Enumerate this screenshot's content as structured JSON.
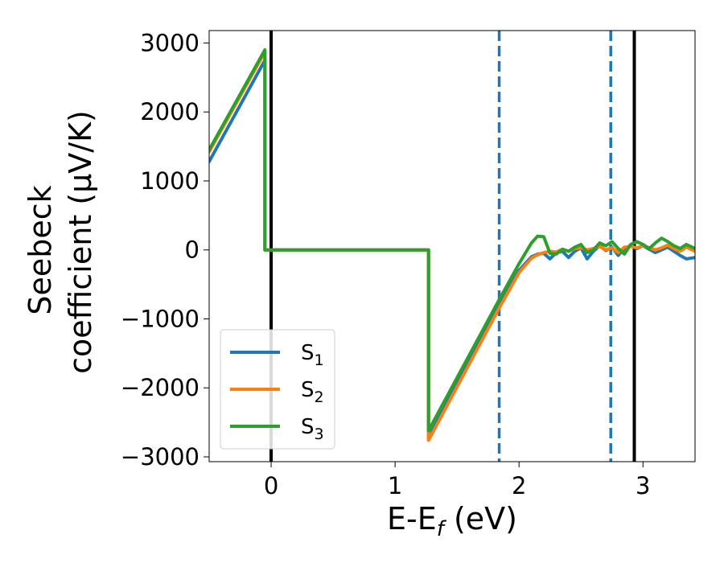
{
  "chart_data": {
    "type": "line",
    "xlabel_main": "E-E",
    "xlabel_sub": "f",
    "xlabel_unit": " (eV)",
    "ylabel_line1": "Seebeck",
    "ylabel_line2": "coefficient  (μV/K)",
    "xlim": [
      -0.5,
      3.42
    ],
    "ylim": [
      -3070,
      3180
    ],
    "xticks": [
      0,
      1,
      2,
      3
    ],
    "xtick_labels": [
      "0",
      "1",
      "2",
      "3"
    ],
    "yticks": [
      3000,
      2000,
      1000,
      0,
      -1000,
      -2000,
      -3000
    ],
    "ytick_labels": [
      "3000",
      "2000",
      "1000",
      "0",
      "−1000",
      "−2000",
      "−3000"
    ],
    "grid": false,
    "legend_position": "lower-left",
    "vlines": [
      {
        "x": 0.0,
        "style": "solid",
        "color": "#000000"
      },
      {
        "x": 1.84,
        "style": "dashed",
        "color": "#1f77b4"
      },
      {
        "x": 2.74,
        "style": "dashed",
        "color": "#1f77b4"
      },
      {
        "x": 2.93,
        "style": "solid",
        "color": "#000000"
      }
    ],
    "series": [
      {
        "name": "S",
        "subscript": "1",
        "color": "#1f77b4",
        "x": [
          -0.5,
          -0.05,
          -0.05,
          1.27,
          1.27,
          1.84,
          2.0,
          2.1,
          2.15,
          2.2,
          2.25,
          2.3,
          2.35,
          2.4,
          2.45,
          2.5,
          2.55,
          2.6,
          2.65,
          2.7,
          2.75,
          2.8,
          2.85,
          2.9,
          2.95,
          3.0,
          3.05,
          3.1,
          3.15,
          3.2,
          3.25,
          3.3,
          3.35,
          3.42
        ],
        "y": [
          1280,
          2750,
          0,
          0,
          -2720,
          -800,
          -300,
          -100,
          -60,
          -50,
          -130,
          -40,
          -20,
          -110,
          -20,
          30,
          -130,
          -20,
          60,
          -10,
          40,
          -80,
          20,
          60,
          20,
          60,
          10,
          -40,
          0,
          40,
          -20,
          -80,
          -130,
          -110
        ]
      },
      {
        "name": "S",
        "subscript": "2",
        "color": "#ff7f0e",
        "x": [
          -0.5,
          -0.05,
          -0.05,
          1.27,
          1.27,
          1.84,
          2.0,
          2.1,
          2.15,
          2.2,
          2.25,
          2.3,
          2.35,
          2.4,
          2.45,
          2.5,
          2.55,
          2.6,
          2.65,
          2.7,
          2.75,
          2.8,
          2.85,
          2.9,
          2.95,
          3.0,
          3.05,
          3.1,
          3.15,
          3.2,
          3.25,
          3.3,
          3.35,
          3.42
        ],
        "y": [
          1420,
          2870,
          0,
          0,
          -2760,
          -840,
          -330,
          -120,
          -70,
          -40,
          -20,
          -30,
          10,
          -20,
          20,
          30,
          0,
          20,
          50,
          0,
          30,
          -40,
          40,
          50,
          30,
          60,
          30,
          0,
          30,
          70,
          20,
          -20,
          40,
          -20
        ]
      },
      {
        "name": "S",
        "subscript": "3",
        "color": "#2ca02c",
        "x": [
          -0.5,
          -0.05,
          -0.05,
          1.27,
          1.27,
          1.84,
          2.0,
          2.1,
          2.15,
          2.2,
          2.25,
          2.3,
          2.35,
          2.4,
          2.45,
          2.5,
          2.55,
          2.6,
          2.65,
          2.7,
          2.75,
          2.8,
          2.85,
          2.9,
          2.95,
          3.0,
          3.05,
          3.1,
          3.15,
          3.2,
          3.25,
          3.3,
          3.35,
          3.42
        ],
        "y": [
          1450,
          2900,
          0,
          0,
          -2620,
          -720,
          -200,
          100,
          200,
          190,
          -50,
          -60,
          10,
          -20,
          40,
          80,
          -40,
          0,
          100,
          60,
          120,
          20,
          -60,
          80,
          120,
          80,
          20,
          100,
          170,
          120,
          60,
          20,
          80,
          20
        ]
      }
    ]
  }
}
